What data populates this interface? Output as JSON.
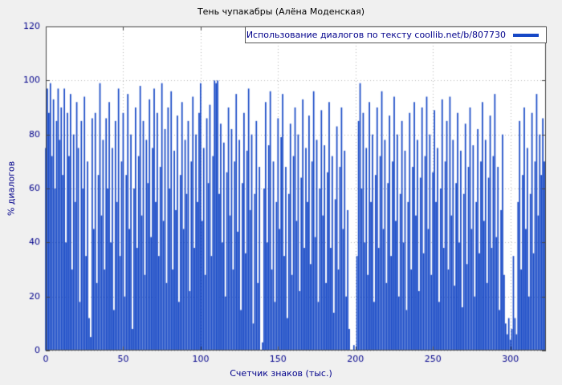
{
  "title": "Тень чупакабры (Алёна Моденская)",
  "legend": {
    "label": "Использование диалогов по тексту coollib.net/b/807730"
  },
  "axes": {
    "y_label": "% диалогов",
    "x_label": "Счетчик знаков (тыс.)"
  },
  "colors": {
    "page_bg": "#f0f0f0",
    "plot_bg": "#ffffff",
    "border": "#444444",
    "grid": "#b5b5b5",
    "bar": "#1648c6",
    "tick_text": "#00008b"
  },
  "chart_data": {
    "type": "bar",
    "title": "Тень чупакабры (Алёна Моденская)",
    "series_name": "Использование диалогов по тексту coollib.net/b/807730",
    "xlabel": "Счетчик знаков (тыс.)",
    "ylabel": "% диалогов",
    "xlim": [
      0,
      323
    ],
    "ylim": [
      0,
      120
    ],
    "x_ticks": [
      0,
      50,
      100,
      150,
      200,
      250,
      300
    ],
    "y_ticks": [
      0,
      20,
      40,
      60,
      80,
      100,
      120
    ],
    "grid": "dotted",
    "legend_position": "top-right-inside",
    "x_step": 1,
    "values": [
      75,
      97,
      88,
      99,
      72,
      93,
      60,
      85,
      97,
      78,
      90,
      65,
      97,
      40,
      88,
      72,
      95,
      30,
      80,
      55,
      92,
      75,
      18,
      85,
      60,
      94,
      35,
      70,
      12,
      5,
      86,
      45,
      88,
      25,
      65,
      99,
      50,
      78,
      30,
      86,
      60,
      92,
      40,
      75,
      15,
      85,
      55,
      97,
      35,
      70,
      88,
      20,
      65,
      95,
      45,
      80,
      8,
      60,
      90,
      38,
      72,
      98,
      50,
      85,
      28,
      78,
      62,
      93,
      42,
      75,
      97,
      55,
      88,
      35,
      68,
      99,
      48,
      82,
      25,
      90,
      60,
      96,
      30,
      74,
      52,
      87,
      18,
      65,
      92,
      45,
      78,
      58,
      85,
      22,
      70,
      94,
      38,
      80,
      55,
      88,
      99,
      48,
      75,
      28,
      86,
      62,
      91,
      35,
      72,
      100,
      99,
      100,
      58,
      84,
      40,
      77,
      20,
      66,
      90,
      50,
      82,
      30,
      70,
      95,
      44,
      78,
      15,
      62,
      88,
      36,
      74,
      97,
      52,
      80,
      10,
      58,
      85,
      25,
      68,
      0,
      3,
      60,
      92,
      40,
      76,
      96,
      30,
      70,
      18,
      55,
      86,
      45,
      79,
      95,
      35,
      68,
      12,
      58,
      84,
      28,
      72,
      90,
      48,
      80,
      22,
      64,
      93,
      38,
      75,
      55,
      87,
      32,
      70,
      96,
      42,
      78,
      18,
      60,
      89,
      50,
      76,
      25,
      66,
      92,
      38,
      72,
      14,
      56,
      83,
      30,
      68,
      90,
      45,
      74,
      20,
      52,
      8,
      0,
      0,
      2,
      0,
      35,
      85,
      99,
      60,
      88,
      40,
      75,
      28,
      92,
      55,
      80,
      18,
      65,
      90,
      38,
      72,
      96,
      45,
      78,
      25,
      62,
      87,
      35,
      70,
      94,
      48,
      80,
      20,
      58,
      85,
      40,
      74,
      15,
      55,
      88,
      30,
      68,
      92,
      50,
      78,
      22,
      64,
      90,
      36,
      72,
      94,
      45,
      80,
      28,
      66,
      89,
      55,
      75,
      18,
      60,
      93,
      38,
      70,
      85,
      30,
      94,
      50,
      78,
      24,
      62,
      88,
      40,
      74,
      16,
      58,
      84,
      32,
      68,
      90,
      45,
      76,
      20,
      55,
      82,
      36,
      70,
      92,
      48,
      78,
      25,
      64,
      87,
      38,
      72,
      95,
      42,
      68,
      15,
      52,
      80,
      28,
      10,
      6,
      12,
      4,
      8,
      35,
      12,
      6,
      55,
      85,
      30,
      65,
      90,
      45,
      75,
      20,
      58,
      88,
      36,
      70,
      95,
      50,
      80,
      65,
      86,
      70
    ]
  }
}
